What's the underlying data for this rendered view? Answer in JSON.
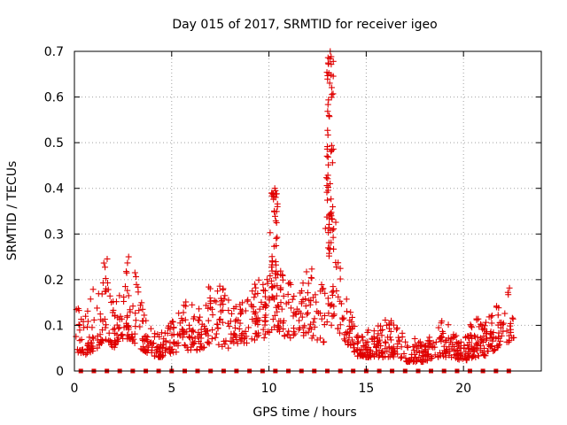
{
  "chart_data": {
    "type": "scatter",
    "title": "Day 015 of 2017, SRMTID for receiver igeo",
    "xlabel": "GPS time / hours",
    "ylabel": "SRMTID / TECUs",
    "xlim": [
      0,
      24
    ],
    "ylim": [
      0,
      0.7
    ],
    "xticks": [
      "0",
      "5",
      "10",
      "15",
      "20"
    ],
    "yticks": [
      "0",
      "0.1",
      "0.2",
      "0.3",
      "0.4",
      "0.5",
      "0.6",
      "0.7"
    ],
    "grid": true,
    "marker": "+",
    "color": "#e00000",
    "baseline_marker": "square",
    "baseline_markers": [
      0.33,
      1.0,
      1.67,
      2.33,
      3.0,
      3.67,
      4.33,
      5.0,
      5.67,
      6.33,
      7.0,
      7.67,
      8.33,
      9.0,
      9.67,
      10.33,
      11.0,
      11.67,
      12.33,
      13.0,
      13.67,
      14.33,
      15.0,
      15.67,
      16.33,
      17.0,
      17.67,
      18.33,
      19.0,
      19.67,
      20.33,
      21.0,
      21.67,
      22.33
    ],
    "baseline_value": 0,
    "envelope": {
      "description": "approximate visible scatter range (hour, low, high)",
      "points": [
        [
          0.0,
          0.05,
          0.18
        ],
        [
          0.4,
          0.03,
          0.11
        ],
        [
          0.8,
          0.04,
          0.19
        ],
        [
          1.2,
          0.05,
          0.18
        ],
        [
          1.6,
          0.07,
          0.28
        ],
        [
          2.0,
          0.05,
          0.15
        ],
        [
          2.4,
          0.06,
          0.17
        ],
        [
          2.9,
          0.07,
          0.28
        ],
        [
          3.3,
          0.05,
          0.18
        ],
        [
          3.7,
          0.04,
          0.11
        ],
        [
          4.2,
          0.03,
          0.08
        ],
        [
          4.7,
          0.03,
          0.09
        ],
        [
          5.2,
          0.04,
          0.12
        ],
        [
          5.6,
          0.05,
          0.16
        ],
        [
          6.1,
          0.04,
          0.15
        ],
        [
          6.6,
          0.05,
          0.13
        ],
        [
          7.0,
          0.06,
          0.21
        ],
        [
          7.5,
          0.05,
          0.19
        ],
        [
          8.0,
          0.05,
          0.16
        ],
        [
          8.4,
          0.06,
          0.15
        ],
        [
          8.9,
          0.06,
          0.16
        ],
        [
          9.4,
          0.07,
          0.21
        ],
        [
          9.8,
          0.07,
          0.19
        ],
        [
          10.2,
          0.09,
          0.4
        ],
        [
          10.6,
          0.08,
          0.22
        ],
        [
          11.0,
          0.07,
          0.21
        ],
        [
          11.5,
          0.08,
          0.18
        ],
        [
          12.0,
          0.07,
          0.23
        ],
        [
          12.4,
          0.07,
          0.22
        ],
        [
          12.8,
          0.06,
          0.18
        ],
        [
          13.1,
          0.1,
          0.7
        ],
        [
          13.4,
          0.1,
          0.4
        ],
        [
          13.8,
          0.07,
          0.2
        ],
        [
          14.2,
          0.05,
          0.13
        ],
        [
          14.6,
          0.03,
          0.08
        ],
        [
          15.1,
          0.03,
          0.09
        ],
        [
          15.6,
          0.03,
          0.1
        ],
        [
          16.1,
          0.03,
          0.12
        ],
        [
          16.6,
          0.03,
          0.1
        ],
        [
          17.1,
          0.02,
          0.08
        ],
        [
          17.6,
          0.02,
          0.07
        ],
        [
          18.0,
          0.02,
          0.07
        ],
        [
          18.5,
          0.03,
          0.08
        ],
        [
          19.0,
          0.03,
          0.12
        ],
        [
          19.5,
          0.03,
          0.08
        ],
        [
          20.0,
          0.02,
          0.07
        ],
        [
          20.5,
          0.03,
          0.12
        ],
        [
          21.0,
          0.03,
          0.12
        ],
        [
          21.4,
          0.04,
          0.12
        ],
        [
          21.8,
          0.05,
          0.15
        ],
        [
          22.2,
          0.06,
          0.2
        ],
        [
          22.6,
          0.07,
          0.16
        ]
      ]
    },
    "spikes": [
      {
        "x": 10.3,
        "peak": 0.4
      },
      {
        "x": 13.15,
        "peak": 0.7
      }
    ]
  }
}
